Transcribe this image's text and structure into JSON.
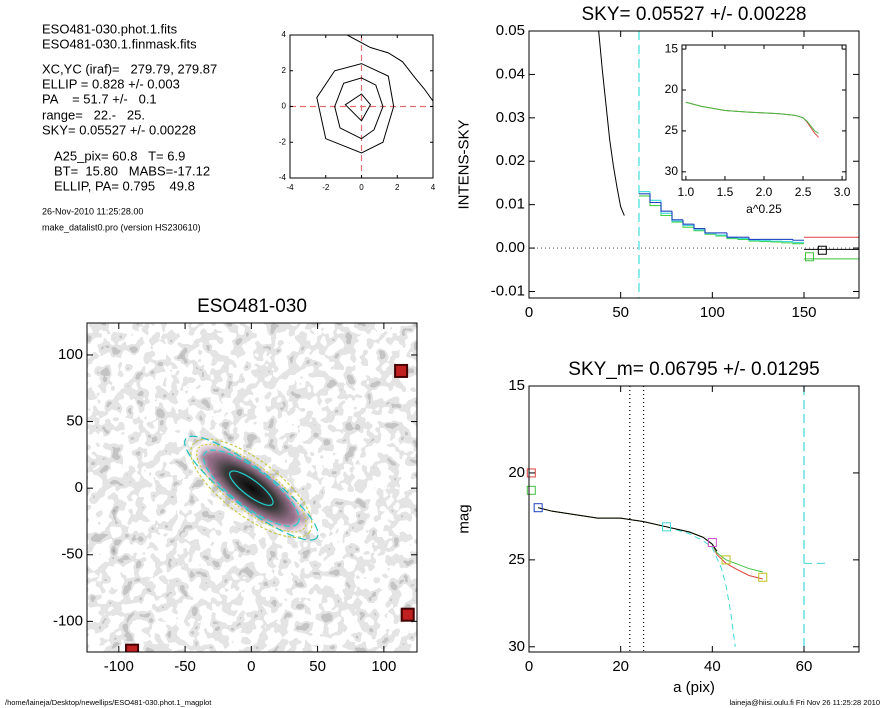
{
  "info": {
    "lines": [
      "ESO481-030.phot.1.fits",
      "ESO481-030.1.finmask.fits",
      "XC,YC (iraf)=   279.79, 279.87",
      "ELLIP = 0.828 +/- 0.003",
      "PA    = 51.7 +/-   0.1",
      "range=   22.-   25.",
      "SKY= 0.05527 +/- 0.00228",
      "A25_pix= 60.8   T= 6.9",
      "BT=  15.80   MABS=-17.12",
      "ELLIP, PA= 0.795    49.8"
    ],
    "date": "26-Nov-2010 11:25:28.00",
    "program": "make_datalist0.pro (version HS230610)"
  },
  "footer": {
    "left": "/home/laineja/Desktop/newellips/ESO481-030.phot.1_magplot",
    "right": "laineja@hiisi.oulu.fi  Fri Nov 26 11:25:28 2010"
  },
  "chart_data": [
    {
      "type": "contour",
      "xlim": [
        -4,
        4
      ],
      "ylim": [
        -4,
        4
      ],
      "xticks": [
        -4,
        -2,
        0,
        2,
        4
      ],
      "yticks": [
        -4,
        -2,
        0,
        2,
        4
      ],
      "series": [
        {
          "color": "#000000",
          "closed": true,
          "x": [
            -0.9,
            0,
            0.5,
            0
          ],
          "values": [
            0.1,
            0.7,
            0.1,
            -0.8
          ]
        },
        {
          "color": "#000000",
          "closed": true,
          "x": [
            -1.5,
            -1,
            0,
            0.8,
            1.2,
            0.7,
            0,
            -1.2
          ],
          "values": [
            0,
            1.3,
            1.6,
            1.2,
            0,
            -1.3,
            -1.8,
            -1.2
          ]
        },
        {
          "color": "#000000",
          "closed": true,
          "x": [
            -2.5,
            -1.5,
            0,
            1.5,
            1.8,
            1.2,
            0,
            -2
          ],
          "values": [
            0.5,
            2,
            2.4,
            1.7,
            0,
            -2,
            -2.6,
            -1.8
          ]
        },
        {
          "color": "#000000",
          "x": [
            -0.8,
            0.5,
            1.5,
            2.3,
            3,
            3.5,
            4
          ],
          "values": [
            4,
            3.3,
            3,
            2.5,
            1.6,
            1,
            0.3
          ]
        }
      ],
      "vlines": [
        {
          "x": 0,
          "color": "#e07070",
          "dash": "6,4"
        }
      ],
      "hlines": [
        {
          "y": 0,
          "color": "#e07070",
          "dash": "6,4"
        }
      ]
    },
    {
      "type": "line",
      "title": "SKY= 0.05527 +/- 0.00228",
      "ylabel": "INTENS-SKY",
      "xlim": [
        0,
        180
      ],
      "ylim": [
        -0.0115,
        0.05
      ],
      "xticks": [
        0,
        50,
        100,
        150
      ],
      "yticks": [
        {
          "value": -0.01,
          "label": "-0.01"
        },
        {
          "value": 0,
          "label": "0.00"
        },
        {
          "value": 0.01,
          "label": "0.01"
        },
        {
          "value": 0.02,
          "label": "0.02"
        },
        {
          "value": 0.03,
          "label": "0.03"
        },
        {
          "value": 0.04,
          "label": "0.04"
        },
        {
          "value": 0.05,
          "label": "0.05"
        }
      ],
      "series": [
        {
          "color": "#000000",
          "x": [
            38,
            40,
            42,
            44,
            46,
            48,
            50,
            52
          ],
          "values": [
            0.05,
            0.041,
            0.033,
            0.025,
            0.019,
            0.014,
            0.0095,
            0.0075
          ]
        },
        {
          "color": "#40d040",
          "style": "step",
          "x": [
            60,
            66,
            72,
            78,
            84,
            90,
            96,
            102,
            108,
            114,
            120,
            126,
            132,
            138,
            144
          ],
          "values": [
            0.012,
            0.0098,
            0.0075,
            0.006,
            0.0048,
            0.004,
            0.0032,
            0.0028,
            0.0022,
            0.002,
            0.0016,
            0.0015,
            0.0014,
            0.0012,
            0.001
          ]
        },
        {
          "color": "#40d8d8",
          "style": "step",
          "x": [
            60,
            66,
            72,
            78,
            84,
            90,
            96,
            102,
            108,
            114,
            120,
            126,
            132,
            138,
            144
          ],
          "values": [
            0.013,
            0.011,
            0.008,
            0.0062,
            0.0052,
            0.0042,
            0.0034,
            0.003,
            0.0024,
            0.0022,
            0.0018,
            0.0017,
            0.0016,
            0.0015,
            0.0013
          ]
        },
        {
          "color": "#2040c0",
          "style": "step",
          "x": [
            60,
            66,
            72,
            78,
            84,
            90,
            96,
            102,
            108,
            114,
            120,
            126,
            132,
            138,
            144
          ],
          "values": [
            0.0125,
            0.0105,
            0.0085,
            0.0065,
            0.0055,
            0.0045,
            0.0035,
            0.0035,
            0.0025,
            0.0025,
            0.002,
            0.002,
            0.002,
            0.002,
            0.0018
          ]
        },
        {
          "color": "#e04040",
          "x": [
            150,
            180
          ],
          "values": [
            0.0025,
            0.0025
          ]
        },
        {
          "color": "#000000",
          "x": [
            150,
            180
          ],
          "values": [
            -0.0003,
            -0.0003
          ]
        },
        {
          "color": "#40c040",
          "x": [
            150,
            180
          ],
          "values": [
            -0.0025,
            -0.0025
          ]
        },
        {
          "color": "#000000",
          "marker": "square",
          "x": [
            160
          ],
          "values": [
            -0.0005
          ]
        },
        {
          "color": "#40c040",
          "marker": "square",
          "x": [
            153
          ],
          "values": [
            -0.002
          ]
        }
      ],
      "vlines": [
        {
          "x": 60,
          "color": "#40e0e0",
          "dash": "9,5"
        }
      ],
      "hlines": [
        {
          "y": 0,
          "color": "#666666",
          "dash": "1,3"
        }
      ],
      "inset": {
        "xlabel": "a^0.25",
        "xlim": [
          0.95,
          3.05
        ],
        "ylim": [
          31,
          14.5
        ],
        "xticks": [
          {
            "value": 1,
            "label": "1.0"
          },
          {
            "value": 1.5,
            "label": "1.5"
          },
          {
            "value": 2,
            "label": "2.0"
          },
          {
            "value": 2.5,
            "label": "2.5"
          },
          {
            "value": 3,
            "label": "3.0"
          }
        ],
        "yticks": [
          15,
          20,
          25,
          30
        ],
        "series": [
          {
            "color": "#e04040",
            "x": [
              1.0,
              1.2,
              1.5,
              1.8,
              2.0,
              2.2,
              2.4,
              2.5,
              2.55,
              2.6,
              2.65,
              2.7
            ],
            "values": [
              21.5,
              22.0,
              22.5,
              22.7,
              22.8,
              22.9,
              23.1,
              23.4,
              23.9,
              24.6,
              25.3,
              25.8
            ]
          },
          {
            "color": "#40c040",
            "x": [
              1.0,
              1.2,
              1.5,
              1.8,
              2.0,
              2.2,
              2.4,
              2.5,
              2.55,
              2.6,
              2.65,
              2.7
            ],
            "values": [
              21.5,
              22.0,
              22.5,
              22.7,
              22.8,
              22.9,
              23.1,
              23.4,
              23.8,
              24.4,
              25.0,
              25.3
            ]
          }
        ]
      }
    },
    {
      "type": "image",
      "title": "ESO481-030",
      "xlim": [
        -124,
        125
      ],
      "ylim": [
        -123,
        124
      ],
      "xticks": [
        -100,
        -50,
        0,
        50,
        100
      ],
      "yticks": [
        -100,
        -50,
        0,
        50,
        100
      ],
      "pa": -37,
      "ellipses": [
        {
          "a": 20,
          "b": 6,
          "color": "#20d0d0"
        },
        {
          "a": 44,
          "b": 14,
          "color": "#20d0d0",
          "dash": "6,3"
        },
        {
          "a": 50,
          "b": 17,
          "color": "#d0d040",
          "dash": "2,2"
        },
        {
          "a": 55,
          "b": 21,
          "color": "#c8c850",
          "dash": "3,2"
        },
        {
          "a": 62,
          "b": 15,
          "color": "#20c0c0",
          "dash": "8,4"
        }
      ],
      "masked": {
        "x": [
          113,
          118,
          -90
        ],
        "values": [
          88,
          -95,
          -122
        ]
      }
    },
    {
      "type": "line",
      "title": "SKY_m=  0.06795 +/- 0.01295",
      "xlabel": "a (pix)",
      "ylabel": "mag",
      "xlim": [
        0,
        72
      ],
      "ylim": [
        30.3,
        15
      ],
      "xticks": [
        0,
        20,
        40,
        60
      ],
      "yticks": [
        15,
        20,
        25,
        30
      ],
      "series": [
        {
          "color": "#40d8d8",
          "dash": "6,4",
          "x": [
            30,
            35,
            38,
            40,
            42,
            43,
            44,
            45
          ],
          "values": [
            23.1,
            23.5,
            23.9,
            24.3,
            25.5,
            26.5,
            28,
            30
          ]
        },
        {
          "color": "#e04040",
          "x": [
            2,
            5,
            10,
            15,
            20,
            25,
            30,
            35,
            38,
            40,
            41,
            43,
            45,
            48,
            51
          ],
          "values": [
            22,
            22.2,
            22.4,
            22.6,
            22.6,
            22.8,
            23.1,
            23.4,
            23.7,
            24.1,
            24.7,
            25.2,
            25.5,
            25.9,
            26.1
          ]
        },
        {
          "color": "#40c040",
          "x": [
            2,
            5,
            10,
            15,
            20,
            25,
            30,
            35,
            38,
            40,
            41,
            43,
            45,
            48,
            51
          ],
          "values": [
            22,
            22.2,
            22.4,
            22.6,
            22.6,
            22.8,
            23.1,
            23.4,
            23.7,
            24.1,
            24.6,
            25.0,
            25.2,
            25.5,
            25.7
          ]
        },
        {
          "color": "#000000",
          "x": [
            2,
            5,
            10,
            15,
            20,
            25,
            30,
            35,
            38,
            40,
            41
          ],
          "values": [
            22,
            22.2,
            22.4,
            22.6,
            22.6,
            22.8,
            23.1,
            23.4,
            23.7,
            24.1,
            24.5
          ]
        },
        {
          "color": "#40d8d8",
          "dash": "8,5",
          "x": [
            60,
            65
          ],
          "values": [
            25.2,
            25.2
          ]
        },
        {
          "color": "#e04040",
          "marker": "square",
          "x": [
            0.5
          ],
          "values": [
            20
          ]
        },
        {
          "color": "#40c040",
          "marker": "square",
          "x": [
            0.5
          ],
          "values": [
            21
          ]
        },
        {
          "color": "#2040c0",
          "marker": "square",
          "x": [
            2
          ],
          "values": [
            22
          ]
        },
        {
          "color": "#40d8d8",
          "marker": "square",
          "x": [
            30
          ],
          "values": [
            23.1
          ]
        },
        {
          "color": "#d050d0",
          "marker": "square",
          "x": [
            40
          ],
          "values": [
            24
          ]
        },
        {
          "color": "#c0c020",
          "marker": "square",
          "x": [
            43,
            51
          ],
          "values": [
            25,
            26
          ]
        }
      ],
      "vlines": [
        {
          "x": 22,
          "color": "#000000",
          "dash": "1,3"
        },
        {
          "x": 25,
          "color": "#000000",
          "dash": "1,3"
        },
        {
          "x": 60,
          "color": "#40d8d8",
          "dash": "9,5"
        }
      ]
    }
  ]
}
